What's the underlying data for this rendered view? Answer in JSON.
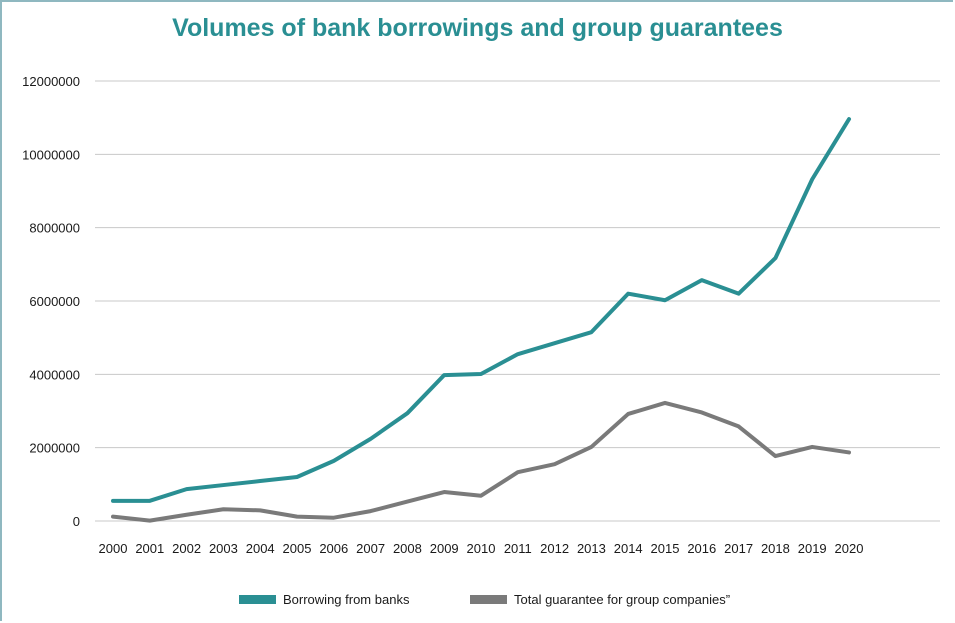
{
  "chart_data": {
    "type": "line",
    "title": "Volumes of bank borrowings and group guarantees",
    "xlabel": "",
    "ylabel": "",
    "categories": [
      "2000",
      "2001",
      "2002",
      "2003",
      "2004",
      "2005",
      "2006",
      "2007",
      "2008",
      "2009",
      "2010",
      "2011",
      "2012",
      "2013",
      "2014",
      "2015",
      "2016",
      "2017",
      "2018",
      "2019",
      "2020"
    ],
    "ylim": [
      0,
      12000000
    ],
    "yticks": [
      0,
      2000000,
      4000000,
      6000000,
      8000000,
      10000000,
      12000000
    ],
    "ytick_labels": [
      "0",
      "2000000",
      "4000000",
      "6000000",
      "8000000",
      "10000000",
      "12000000"
    ],
    "grid": "horizontal",
    "legend_position": "bottom",
    "series": [
      {
        "name": "Borrowing from banks",
        "color": "#2a8f93",
        "values": [
          550000,
          550000,
          870000,
          980000,
          1090000,
          1200000,
          1640000,
          2240000,
          2940000,
          3980000,
          4010000,
          4550000,
          4850000,
          5150000,
          6200000,
          6020000,
          6570000,
          6200000,
          7170000,
          9320000,
          10960000
        ]
      },
      {
        "name": "Total guarantee for group companies”",
        "color": "#7a7a7a",
        "values": [
          120000,
          10000,
          170000,
          320000,
          290000,
          120000,
          90000,
          270000,
          530000,
          790000,
          690000,
          1330000,
          1550000,
          2020000,
          2920000,
          3220000,
          2960000,
          2580000,
          1770000,
          2020000,
          1870000
        ]
      }
    ]
  }
}
